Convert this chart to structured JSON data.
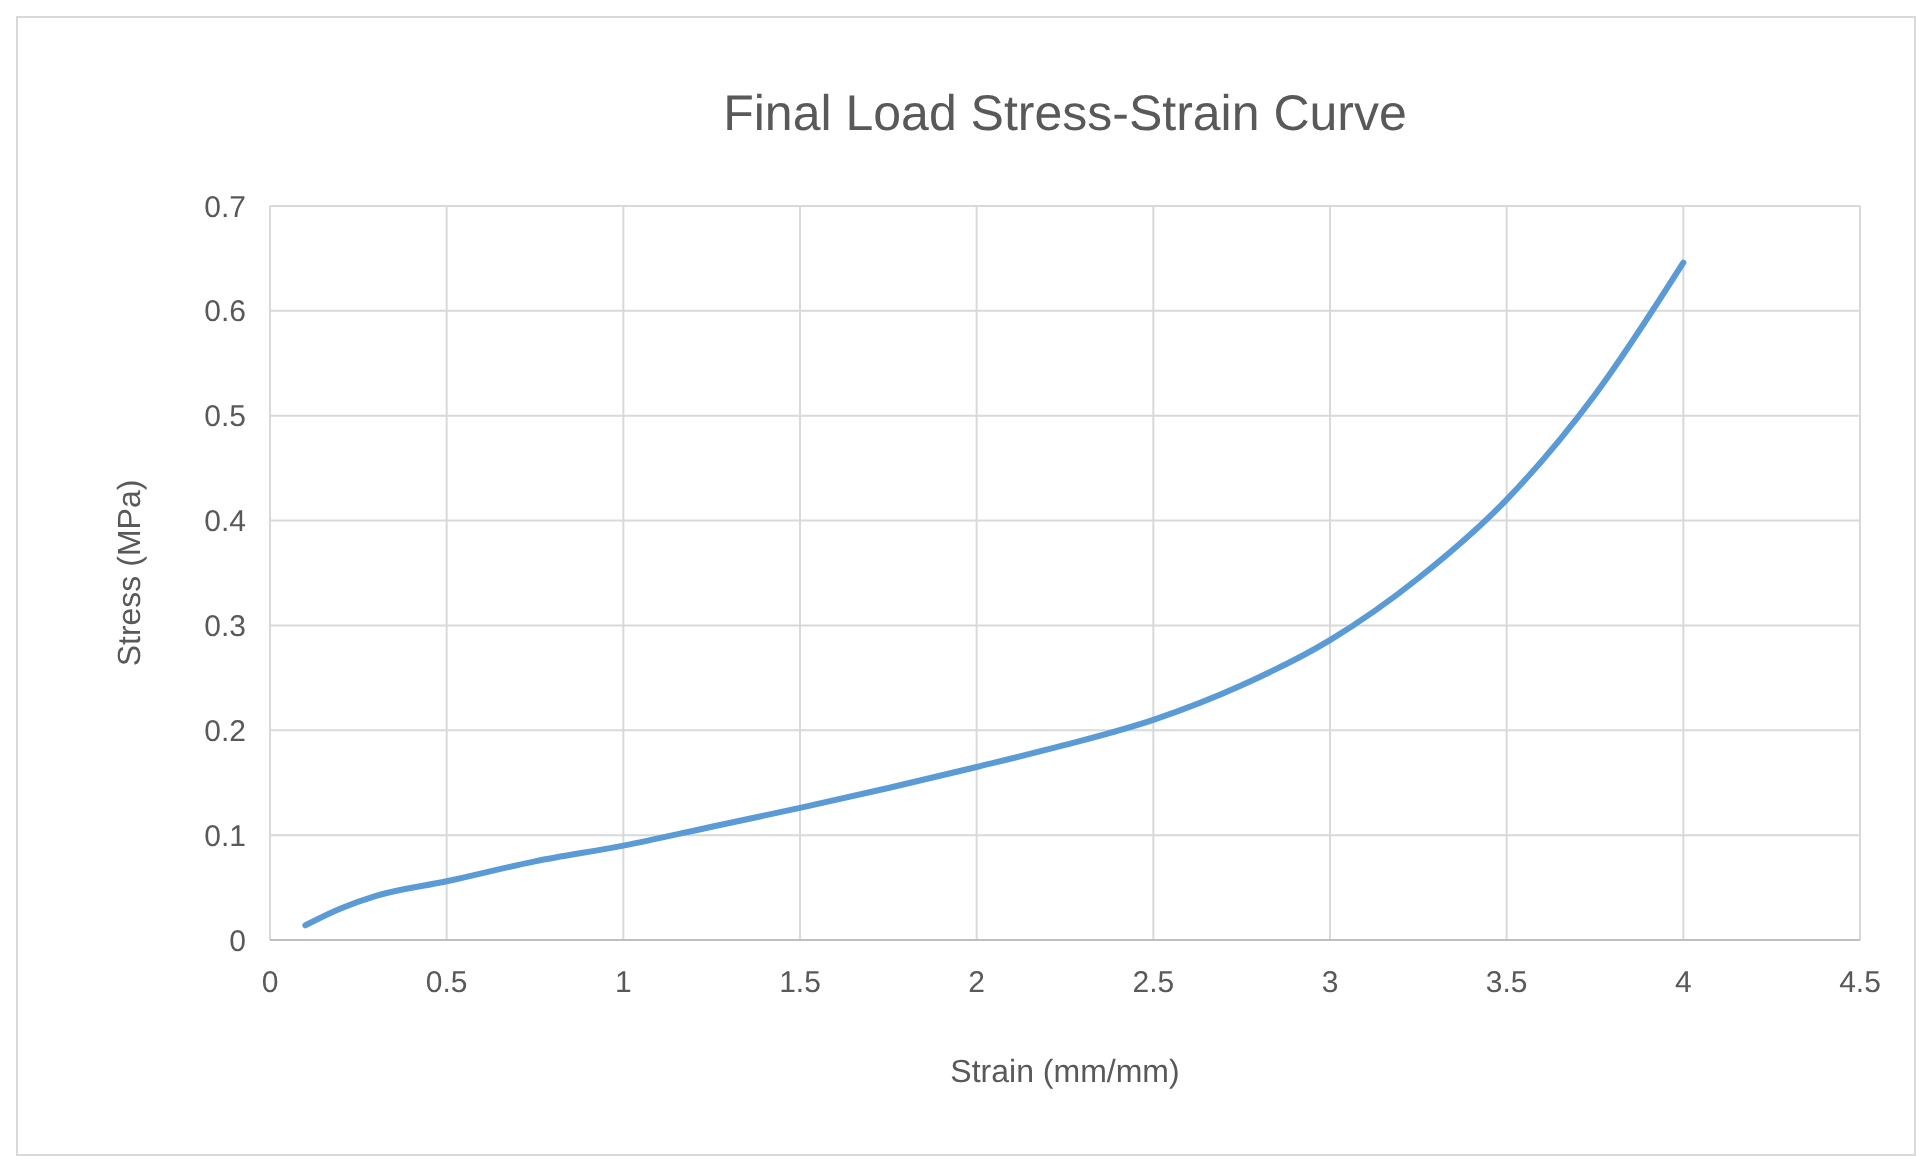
{
  "chart_data": {
    "type": "line",
    "title": "Final Load Stress-Strain Curve",
    "xlabel": "Strain (mm/mm)",
    "ylabel": "Stress (MPa)",
    "x": [
      0.1,
      0.2,
      0.3,
      0.5,
      0.75,
      1,
      1.25,
      1.5,
      1.75,
      2,
      2.25,
      2.5,
      2.75,
      3,
      3.25,
      3.5,
      3.75,
      4
    ],
    "series": [
      {
        "color": "#5b9bd5",
        "values": [
          0.014,
          0.03,
          0.042,
          0.056,
          0.075,
          0.09,
          0.108,
          0.126,
          0.145,
          0.165,
          0.186,
          0.21,
          0.243,
          0.286,
          0.345,
          0.42,
          0.52,
          0.646
        ]
      }
    ],
    "xlim": [
      0,
      4.5
    ],
    "xticks": [
      0,
      0.5,
      1,
      1.5,
      2,
      2.5,
      3,
      3.5,
      4,
      4.5
    ],
    "ylim": [
      0,
      0.7
    ],
    "yticks": [
      0,
      0.1,
      0.2,
      0.3,
      0.4,
      0.5,
      0.6,
      0.7
    ],
    "grid": true,
    "marker": "none",
    "line_style": "solid"
  }
}
